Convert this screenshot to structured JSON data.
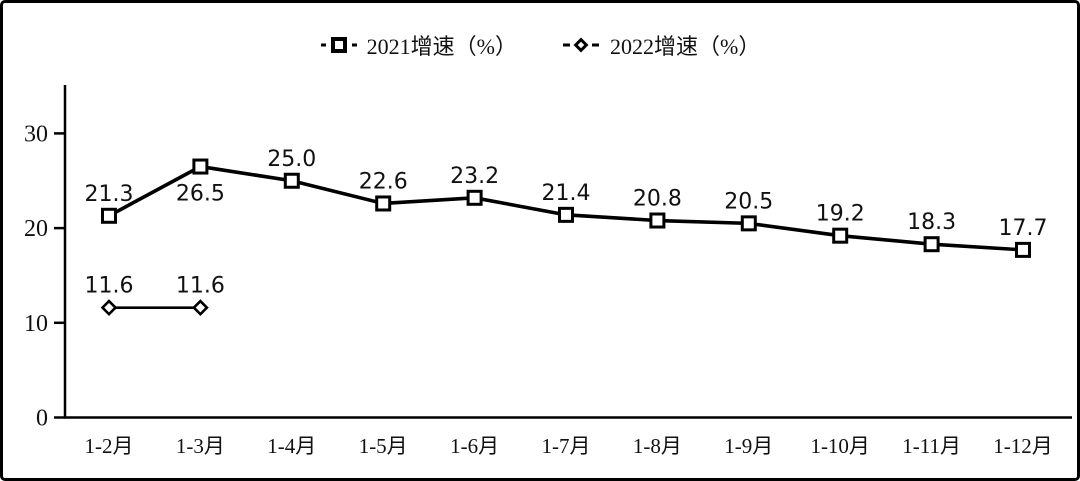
{
  "chart_data": {
    "type": "line",
    "title": "",
    "xlabel": "",
    "ylabel": "",
    "categories": [
      "1-2月",
      "1-3月",
      "1-4月",
      "1-5月",
      "1-6月",
      "1-7月",
      "1-8月",
      "1-9月",
      "1-10月",
      "1-11月",
      "1-12月"
    ],
    "series": [
      {
        "name": "2021增速（%）",
        "marker": "square",
        "values": [
          21.3,
          26.5,
          25.0,
          22.6,
          23.2,
          21.4,
          20.8,
          20.5,
          19.2,
          18.3,
          17.7
        ],
        "label_positions": [
          "above",
          "below",
          "above",
          "above",
          "above",
          "above",
          "above",
          "above",
          "above",
          "above",
          "above"
        ]
      },
      {
        "name": "2022增速（%）",
        "marker": "diamond",
        "values": [
          11.6,
          11.6
        ],
        "label_positions": [
          "above",
          "above"
        ]
      }
    ],
    "yticks": [
      0,
      10,
      20,
      30
    ],
    "ylim": [
      0,
      35
    ],
    "grid": false,
    "legend_position": "top-center",
    "colors": {
      "series": "#000000",
      "marker_fill": "#ffffff",
      "text": "#111111",
      "background": "#ffffff",
      "border": "#000000"
    }
  }
}
